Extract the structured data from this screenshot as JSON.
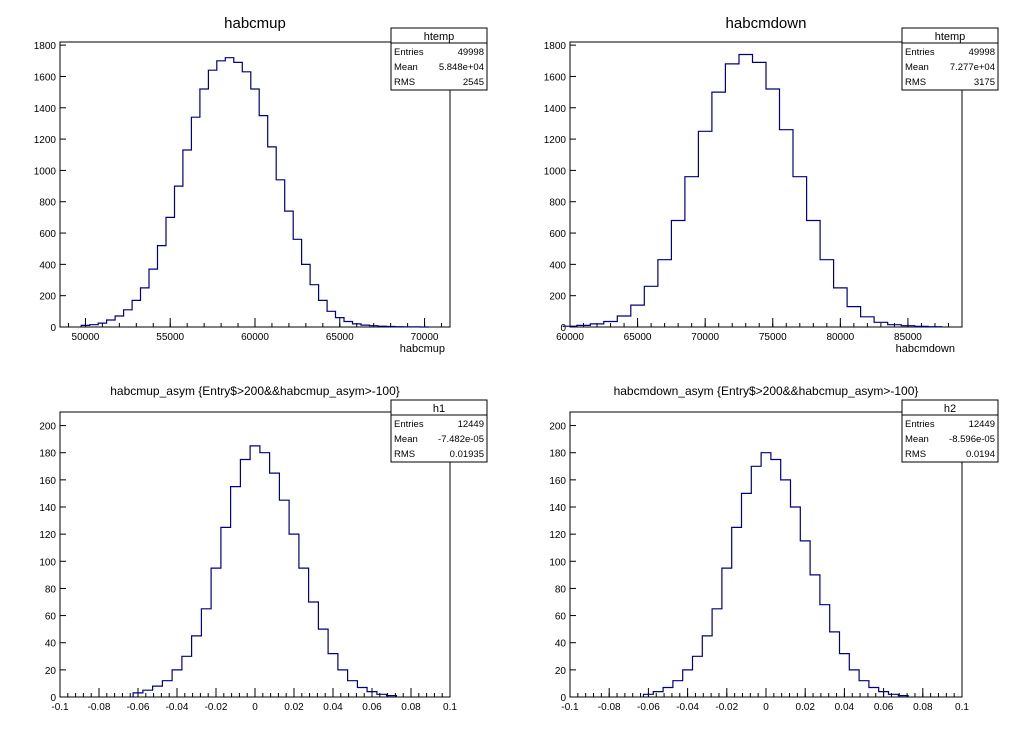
{
  "chart_data": [
    {
      "type": "histogram",
      "title": "habcmup",
      "xlabel": "habcmup",
      "ylabel": "",
      "xlim": [
        48500,
        71500
      ],
      "ylim": [
        0,
        1820
      ],
      "xticks": [
        50000,
        55000,
        60000,
        65000,
        70000
      ],
      "yticks": [
        0,
        200,
        400,
        600,
        800,
        1000,
        1200,
        1400,
        1600,
        1800
      ],
      "series": [
        {
          "x": [
            50000,
            50500,
            51000,
            51500,
            52000,
            52500,
            53000,
            53500,
            54000,
            54500,
            55000,
            55500,
            56000,
            56500,
            57000,
            57500,
            58000,
            58500,
            59000,
            59500,
            60000,
            60500,
            61000,
            61500,
            62000,
            62500,
            63000,
            63500,
            64000,
            64500,
            65000,
            65500,
            66000,
            66500,
            67000,
            67500,
            68000,
            68500,
            69000,
            69500,
            70000
          ],
          "y": [
            10,
            15,
            25,
            45,
            70,
            110,
            170,
            250,
            370,
            520,
            700,
            900,
            1130,
            1340,
            1520,
            1640,
            1700,
            1720,
            1690,
            1630,
            1520,
            1350,
            1150,
            940,
            740,
            560,
            400,
            270,
            170,
            100,
            60,
            35,
            20,
            12,
            8,
            5,
            3,
            2,
            1,
            1,
            0
          ]
        }
      ],
      "stats": {
        "name": "htemp",
        "rows": [
          [
            "Entries",
            "49998"
          ],
          [
            "Mean",
            "5.848e+04"
          ],
          [
            "RMS",
            "2545"
          ]
        ]
      }
    },
    {
      "type": "histogram",
      "title": "habcmdown",
      "xlabel": "habcmdown",
      "ylabel": "",
      "xlim": [
        60000,
        89000
      ],
      "ylim": [
        0,
        1820
      ],
      "xticks": [
        60000,
        65000,
        70000,
        75000,
        80000,
        85000
      ],
      "yticks": [
        0,
        200,
        400,
        600,
        800,
        1000,
        1200,
        1400,
        1600,
        1800
      ],
      "series": [
        {
          "x": [
            60000,
            61000,
            62000,
            63000,
            64000,
            65000,
            66000,
            67000,
            68000,
            69000,
            70000,
            71000,
            72000,
            73000,
            74000,
            75000,
            76000,
            77000,
            78000,
            79000,
            80000,
            81000,
            82000,
            83000,
            84000,
            85000,
            86000,
            87000
          ],
          "y": [
            5,
            10,
            20,
            35,
            70,
            140,
            260,
            430,
            680,
            960,
            1250,
            1500,
            1680,
            1740,
            1690,
            1520,
            1260,
            960,
            680,
            430,
            250,
            130,
            65,
            30,
            15,
            8,
            4,
            2
          ]
        }
      ],
      "stats": {
        "name": "htemp",
        "rows": [
          [
            "Entries",
            "49998"
          ],
          [
            "Mean",
            "7.277e+04"
          ],
          [
            "RMS",
            "3175"
          ]
        ]
      }
    },
    {
      "type": "histogram",
      "title": "habcmup_asym {Entry$>200&&habcmup_asym>-100}",
      "xlabel": "",
      "ylabel": "",
      "xlim": [
        -0.1,
        0.1
      ],
      "ylim": [
        0,
        210
      ],
      "xticks": [
        -0.1,
        -0.08,
        -0.06,
        -0.04,
        -0.02,
        0,
        0.02,
        0.04,
        0.06,
        0.08,
        0.1
      ],
      "yticks": [
        0,
        20,
        40,
        60,
        80,
        100,
        120,
        140,
        160,
        180,
        200
      ],
      "series": [
        {
          "x": [
            -0.06,
            -0.055,
            -0.05,
            -0.045,
            -0.04,
            -0.035,
            -0.03,
            -0.025,
            -0.02,
            -0.015,
            -0.01,
            -0.005,
            0,
            0.005,
            0.01,
            0.015,
            0.02,
            0.025,
            0.03,
            0.035,
            0.04,
            0.045,
            0.05,
            0.055,
            0.06,
            0.065,
            0.07
          ],
          "y": [
            3,
            5,
            8,
            12,
            20,
            30,
            45,
            65,
            95,
            125,
            155,
            175,
            185,
            180,
            165,
            145,
            120,
            95,
            70,
            50,
            32,
            20,
            12,
            7,
            4,
            2,
            1
          ]
        }
      ],
      "stats": {
        "name": "h1",
        "rows": [
          [
            "Entries",
            "12449"
          ],
          [
            "Mean",
            "-7.482e-05"
          ],
          [
            "RMS",
            "0.01935"
          ]
        ]
      }
    },
    {
      "type": "histogram",
      "title": "habcmdown_asym {Entry$>200&&habcmup_asym>-100}",
      "xlabel": "",
      "ylabel": "",
      "xlim": [
        -0.1,
        0.1
      ],
      "ylim": [
        0,
        210
      ],
      "xticks": [
        -0.1,
        -0.08,
        -0.06,
        -0.04,
        -0.02,
        0,
        0.02,
        0.04,
        0.06,
        0.08,
        0.1
      ],
      "yticks": [
        0,
        20,
        40,
        60,
        80,
        100,
        120,
        140,
        160,
        180,
        200
      ],
      "series": [
        {
          "x": [
            -0.06,
            -0.055,
            -0.05,
            -0.045,
            -0.04,
            -0.035,
            -0.03,
            -0.025,
            -0.02,
            -0.015,
            -0.01,
            -0.005,
            0,
            0.005,
            0.01,
            0.015,
            0.02,
            0.025,
            0.03,
            0.035,
            0.04,
            0.045,
            0.05,
            0.055,
            0.06,
            0.065,
            0.07
          ],
          "y": [
            2,
            4,
            7,
            12,
            20,
            30,
            45,
            65,
            95,
            125,
            150,
            170,
            180,
            175,
            160,
            140,
            115,
            90,
            68,
            48,
            32,
            20,
            12,
            7,
            4,
            2,
            1
          ]
        }
      ],
      "stats": {
        "name": "h2",
        "rows": [
          [
            "Entries",
            "12449"
          ],
          [
            "Mean",
            "-8.596e-05"
          ],
          [
            "RMS",
            "0.0194"
          ]
        ]
      }
    }
  ],
  "style": {
    "line_color": "#000080",
    "axis_color": "#000000",
    "background": "#ffffff"
  }
}
